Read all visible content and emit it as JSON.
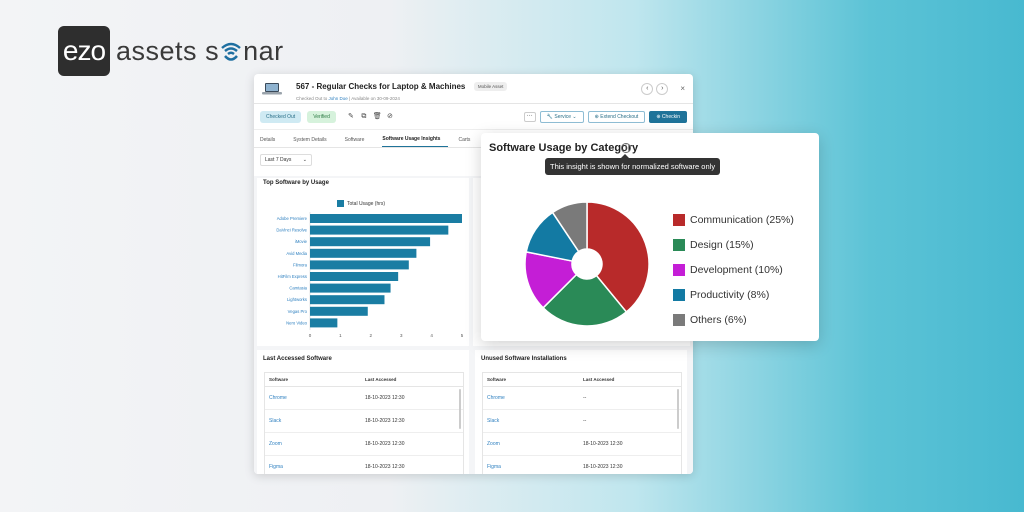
{
  "brand": {
    "box_text": "ezo",
    "text_a": "assets",
    "text_b": "nar"
  },
  "window": {
    "title": "567 - Regular Checks for Laptop & Machines",
    "badge": "Mobile Asset",
    "subtitle_prefix": "Checked Out to ",
    "subtitle_user": "John Doe",
    "subtitle_suffix": " | Available on 30-09-2024",
    "prev": "‹",
    "next": "›",
    "close": "×"
  },
  "toolbar": {
    "status_checked_out": "Checked Out",
    "status_verified": "Verified",
    "more": "···",
    "service": "Service",
    "extend": "Extend Checkout",
    "checkin": "Checkin"
  },
  "tabs": [
    "Details",
    "System Details",
    "Software",
    "Software Usage Insights",
    "Carts"
  ],
  "filter": {
    "value": "Last 7 Days"
  },
  "top_software": {
    "title": "Top Software by Usage",
    "legend": "Total Usage (hrs)"
  },
  "chart_data": [
    {
      "type": "bar",
      "orientation": "horizontal",
      "title": "Top Software by Usage",
      "categories": [
        "Adobe Premiere",
        "DaVinci Resolve",
        "iMovie",
        "Avid Media",
        "Filmora",
        "HitFilm Express",
        "Camtasia",
        "Lightworks",
        "Vegas Pro",
        "Nero Video"
      ],
      "series": [
        {
          "name": "Total Usage (hrs)",
          "values": [
            5,
            4.55,
            3.95,
            3.5,
            3.25,
            2.9,
            2.65,
            2.45,
            1.9,
            0.9
          ]
        }
      ],
      "xlim": [
        0,
        5
      ],
      "xticks": [
        "0",
        "1",
        "2",
        "3",
        "4",
        "5"
      ],
      "color": "#1a7da3"
    },
    {
      "type": "pie",
      "title": "Software Usage by Category",
      "categories": [
        "Communication",
        "Design",
        "Development",
        "Productivity",
        "Others"
      ],
      "values": [
        25,
        15,
        10,
        8,
        6
      ],
      "labels": [
        "Communication (25%)",
        "Design (15%)",
        "Development (10%)",
        "Productivity (8%)",
        "Others (6%)"
      ],
      "colors": [
        "#b82a2a",
        "#2a8a57",
        "#c41ed6",
        "#137aa3",
        "#7a7a7a"
      ]
    }
  ],
  "popup": {
    "title": "Software Usage by Category",
    "info": "i",
    "tooltip": "This insight is shown for normalized software only"
  },
  "last_accessed": {
    "title": "Last Accessed Software",
    "col1": "Software",
    "col2": "Last Accessed",
    "rows": [
      [
        "Chrome",
        "18-10-2023 12:30"
      ],
      [
        "Slack",
        "18-10-2023 12:30"
      ],
      [
        "Zoom",
        "18-10-2023 12:30"
      ],
      [
        "Figma",
        "18-10-2023 12:30"
      ]
    ]
  },
  "unused": {
    "title": "Unused Software Installations",
    "col1": "Software",
    "col2": "Last Accessed",
    "rows": [
      [
        "Chrome",
        "--"
      ],
      [
        "Slack",
        "--"
      ],
      [
        "Zoom",
        "18-10-2023 12:30"
      ],
      [
        "Figma",
        "18-10-2023 12:30"
      ]
    ]
  }
}
